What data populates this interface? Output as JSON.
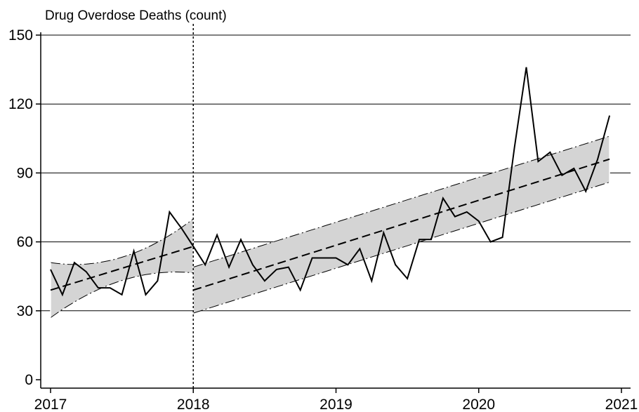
{
  "chart_data": {
    "type": "line",
    "ylabel": "Drug Overdose Deaths (count)",
    "xlim": [
      "2017-01",
      "2021-01"
    ],
    "ylim": [
      0,
      150
    ],
    "grid": "horizontal",
    "x_ticks": [
      "2017",
      "2018",
      "2019",
      "2020",
      "2021"
    ],
    "y_ticks": [
      0,
      30,
      60,
      90,
      120,
      150
    ],
    "vertical_reference_line": "2018-01",
    "observed": {
      "x": [
        "2017-01",
        "2017-02",
        "2017-03",
        "2017-04",
        "2017-05",
        "2017-06",
        "2017-07",
        "2017-08",
        "2017-09",
        "2017-10",
        "2017-11",
        "2017-12",
        "2018-01",
        "2018-02",
        "2018-03",
        "2018-04",
        "2018-05",
        "2018-06",
        "2018-07",
        "2018-08",
        "2018-09",
        "2018-10",
        "2018-11",
        "2018-12",
        "2019-01",
        "2019-02",
        "2019-03",
        "2019-04",
        "2019-05",
        "2019-06",
        "2019-07",
        "2019-08",
        "2019-09",
        "2019-10",
        "2019-11",
        "2019-12",
        "2020-01",
        "2020-02",
        "2020-03",
        "2020-04",
        "2020-05",
        "2020-06",
        "2020-07",
        "2020-08",
        "2020-09",
        "2020-10",
        "2020-11",
        "2020-12"
      ],
      "values": [
        48,
        37,
        51,
        47,
        40,
        40,
        37,
        56,
        37,
        43,
        73,
        66,
        58,
        50,
        63,
        49,
        61,
        50,
        43,
        48,
        49,
        39,
        53,
        53,
        53,
        50,
        57,
        43,
        64,
        50,
        44,
        61,
        61,
        79,
        71,
        73,
        69,
        60,
        62,
        101,
        136,
        95,
        99,
        89,
        92,
        82,
        96,
        115
      ]
    },
    "segments": [
      {
        "x_start": "2017-01",
        "x_end": "2018-01",
        "fit": [
          39,
          58
        ],
        "upper": [
          51,
          53.3,
          70
        ],
        "lower": [
          27,
          43.2,
          46.5
        ]
      },
      {
        "x_start": "2018-01",
        "x_end": "2020-12",
        "fit": [
          39,
          96
        ],
        "upper": [
          49,
          106
        ],
        "lower": [
          29,
          86
        ]
      }
    ],
    "colors": {
      "line": "#000000",
      "band_fill": "#d4d4d4",
      "band_edge": "#000000",
      "grid": "#000000"
    }
  }
}
